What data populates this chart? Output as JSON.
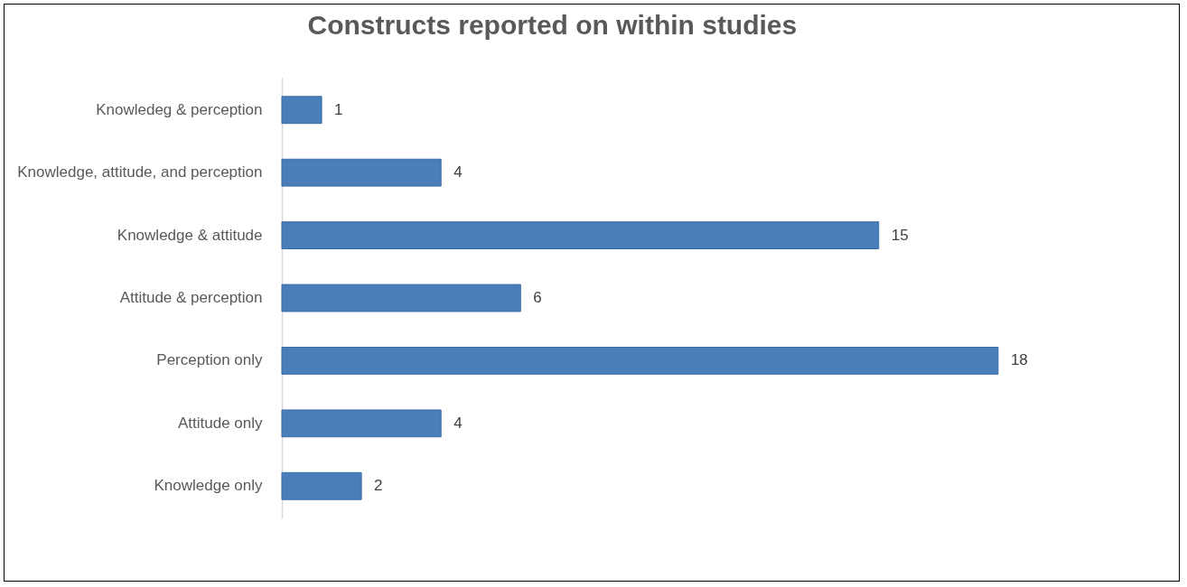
{
  "chart_data": {
    "type": "bar",
    "orientation": "horizontal",
    "title": "Constructs reported on within studies",
    "categories": [
      "Knowledeg & perception",
      "Knowledge, attitude, and perception",
      "Knowledge & attitude",
      "Attitude & perception",
      "Perception only",
      "Attitude only",
      "Knowledge only"
    ],
    "values": [
      1,
      4,
      15,
      6,
      18,
      4,
      2
    ],
    "color": "#4a7ebb",
    "data_labels": true,
    "tick_labels": "y"
  }
}
